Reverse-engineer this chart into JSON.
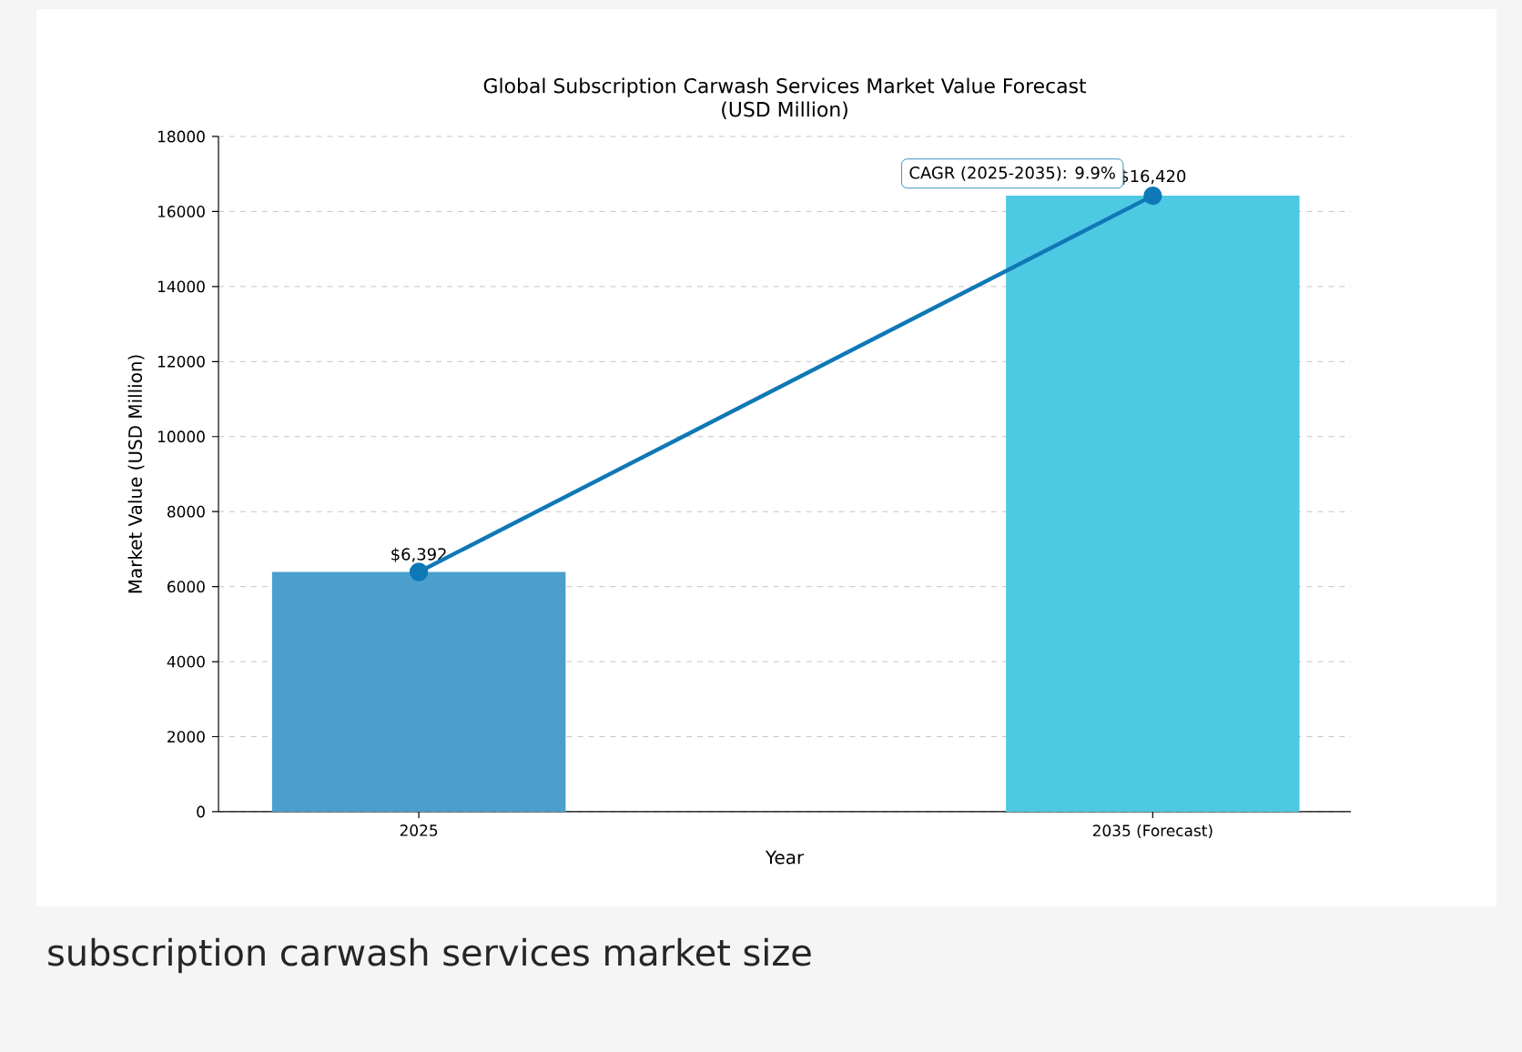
{
  "chart_data": {
    "type": "bar",
    "title": "Global Subscription Carwash Services Market Value Forecast\n(USD Million)",
    "xlabel": "Year",
    "ylabel": "Market Value (USD Million)",
    "categories": [
      "2025",
      "2035 (Forecast)"
    ],
    "series": [
      {
        "colors": [
          "#4a9fcc",
          "#4ec9e3"
        ],
        "values": [
          6392,
          16420
        ],
        "value_labels": [
          "$6,392",
          "$16,420"
        ]
      },
      {
        "type": "line",
        "color": "#0f78b6",
        "values": [
          6392,
          16420
        ],
        "marker": "circle"
      }
    ],
    "ylim": [
      0,
      18000
    ],
    "yticks": [
      0,
      2000,
      4000,
      6000,
      8000,
      10000,
      12000,
      14000,
      16000,
      18000
    ],
    "grid": "y",
    "annotations": [
      {
        "text": "CAGR (2025-2035): 9.9%",
        "x": "2035 (Forecast)",
        "y": 16420
      },
      "subscription carwash services market size"
    ]
  }
}
